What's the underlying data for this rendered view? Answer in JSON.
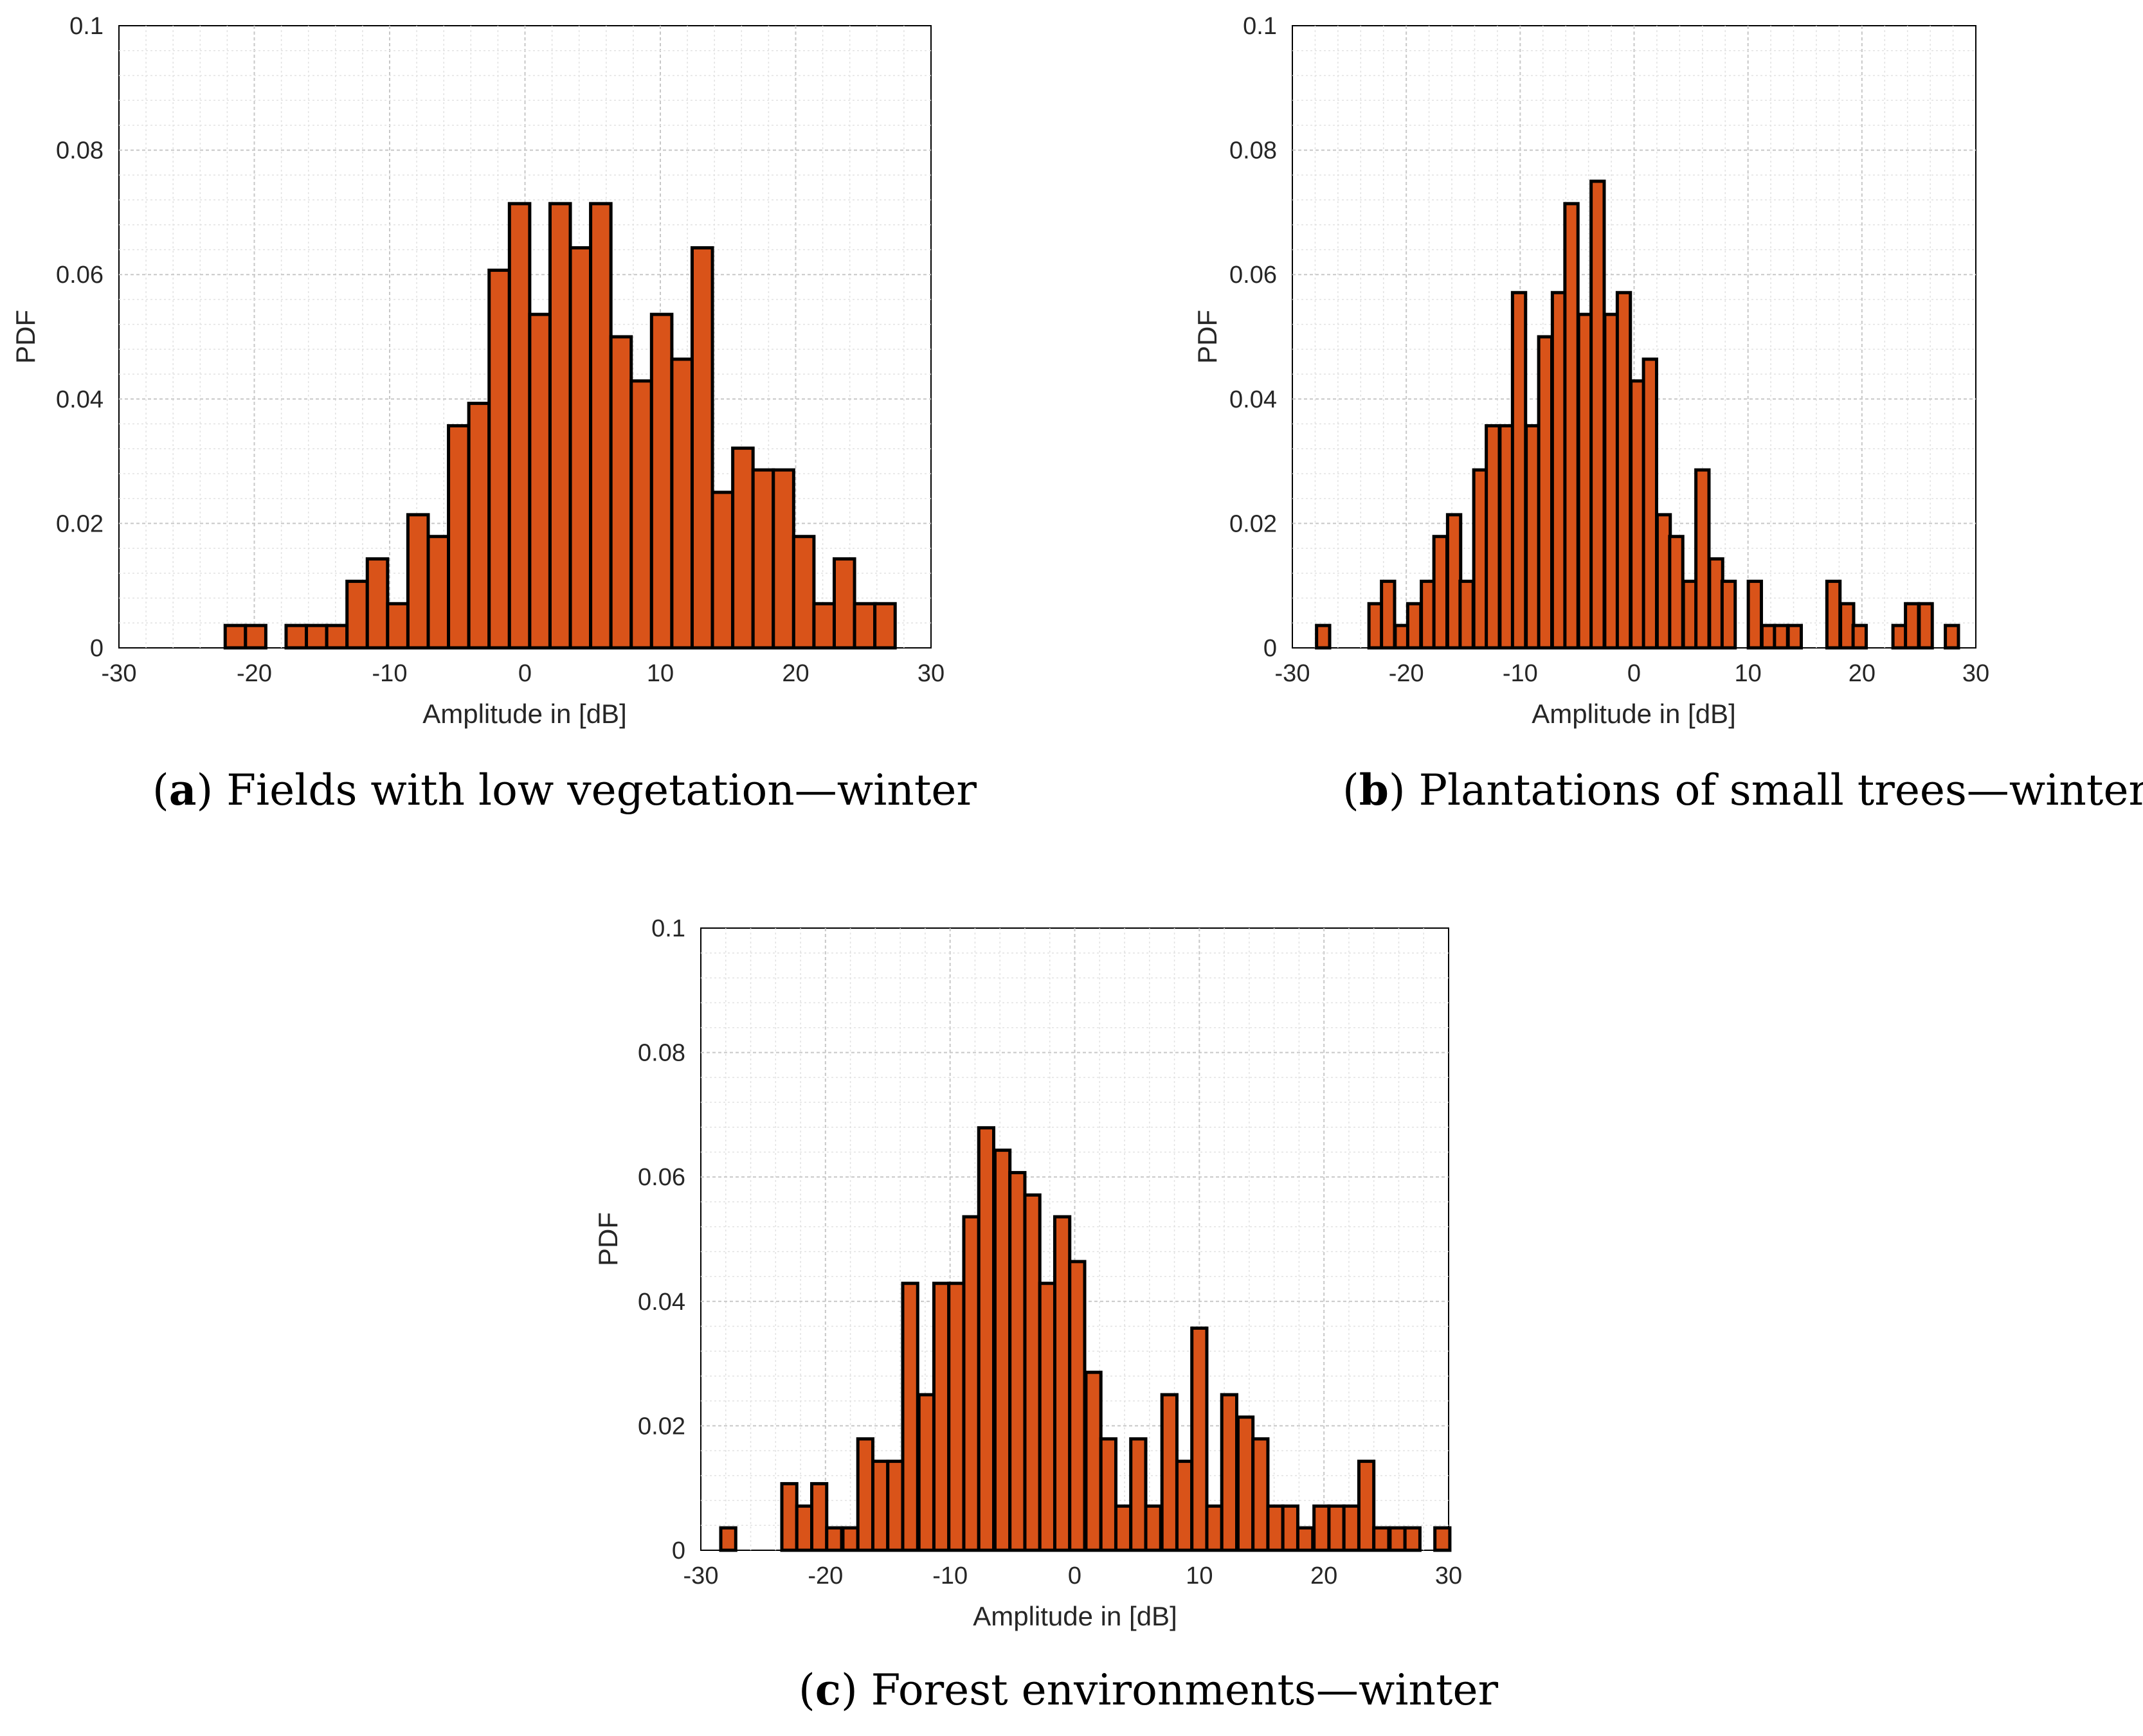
{
  "colors": {
    "bar": "#d95319",
    "edge": "#000000"
  },
  "chart_data": [
    {
      "type": "bar",
      "caption_letter": "a",
      "caption_text": "Fields with low vegetation—winter",
      "title": "",
      "xlabel": "Amplitude in [dB]",
      "ylabel": "PDF",
      "xlim": [
        -30,
        30
      ],
      "ylim": [
        0,
        0.1
      ],
      "xticks": [
        "-30",
        "-20",
        "-10",
        "0",
        "10",
        "20",
        "30"
      ],
      "yticks": [
        "0",
        "0.02",
        "0.04",
        "0.06",
        "0.08",
        "0.1"
      ],
      "grid": true,
      "bin_width": 1.5,
      "x": [
        -21.4,
        -19.9,
        -16.9,
        -15.4,
        -13.9,
        -12.4,
        -10.9,
        -9.4,
        -7.9,
        -6.4,
        -4.9,
        -3.4,
        -1.9,
        -0.4,
        1.1,
        2.6,
        4.1,
        5.6,
        7.1,
        8.6,
        10.1,
        11.6,
        13.1,
        14.6,
        16.1,
        17.6,
        19.1,
        20.6,
        22.1,
        23.6,
        25.1,
        26.6
      ],
      "values": [
        0.0036,
        0.0036,
        0.0036,
        0.0036,
        0.0036,
        0.0107,
        0.0143,
        0.0071,
        0.0214,
        0.0179,
        0.0357,
        0.0393,
        0.0607,
        0.0714,
        0.0536,
        0.0714,
        0.0643,
        0.0714,
        0.05,
        0.0429,
        0.0536,
        0.0464,
        0.0643,
        0.025,
        0.0321,
        0.0286,
        0.0286,
        0.0179,
        0.0071,
        0.0143,
        0.0071,
        0.0071
      ]
    },
    {
      "type": "bar",
      "caption_letter": "b",
      "caption_text": "Plantations of small trees—winter",
      "title": "",
      "xlabel": "Amplitude in [dB]",
      "ylabel": "PDF",
      "xlim": [
        -30,
        30
      ],
      "ylim": [
        0,
        0.1
      ],
      "xticks": [
        "-30",
        "-20",
        "-10",
        "0",
        "10",
        "20",
        "30"
      ],
      "yticks": [
        "0",
        "0.02",
        "0.04",
        "0.06",
        "0.08",
        "0.1"
      ],
      "grid": true,
      "bin_width": 1.15,
      "x": [
        -27.3,
        -22.7,
        -21.6,
        -20.4,
        -19.3,
        -18.1,
        -17.0,
        -15.8,
        -14.7,
        -13.5,
        -12.4,
        -11.2,
        -10.1,
        -8.9,
        -7.8,
        -6.6,
        -5.5,
        -4.3,
        -3.2,
        -2.0,
        -0.9,
        0.3,
        1.4,
        2.6,
        3.7,
        4.9,
        6.0,
        7.2,
        8.3,
        10.6,
        11.8,
        12.9,
        14.1,
        17.5,
        18.7,
        19.8,
        23.3,
        24.4,
        25.6,
        27.9
      ],
      "values": [
        0.0036,
        0.0071,
        0.0107,
        0.0036,
        0.0071,
        0.0107,
        0.0179,
        0.0214,
        0.0107,
        0.0286,
        0.0357,
        0.0357,
        0.0571,
        0.0357,
        0.05,
        0.0571,
        0.0714,
        0.0536,
        0.075,
        0.0536,
        0.0571,
        0.0429,
        0.0464,
        0.0214,
        0.0179,
        0.0107,
        0.0286,
        0.0143,
        0.0107,
        0.0107,
        0.0036,
        0.0036,
        0.0036,
        0.0107,
        0.0071,
        0.0036,
        0.0036,
        0.0071,
        0.0071,
        0.0036
      ]
    },
    {
      "type": "bar",
      "caption_letter": "c",
      "caption_text": "Forest environments—winter",
      "title": "",
      "xlabel": "Amplitude in [dB]",
      "ylabel": "PDF",
      "xlim": [
        -30,
        30
      ],
      "ylim": [
        0,
        0.1
      ],
      "xticks": [
        "-30",
        "-20",
        "-10",
        "0",
        "10",
        "20",
        "30"
      ],
      "yticks": [
        "0",
        "0.02",
        "0.04",
        "0.06",
        "0.08",
        "0.1"
      ],
      "grid": true,
      "bin_width": 1.2,
      "x": [
        -27.8,
        -22.9,
        -21.7,
        -20.5,
        -19.3,
        -18.0,
        -16.8,
        -15.6,
        -14.4,
        -13.2,
        -11.9,
        -10.7,
        -9.5,
        -8.3,
        -7.1,
        -5.8,
        -4.6,
        -3.4,
        -2.2,
        -1.0,
        0.2,
        1.5,
        2.7,
        3.9,
        5.1,
        6.3,
        7.6,
        8.8,
        10.0,
        11.2,
        12.4,
        13.7,
        14.9,
        16.1,
        17.3,
        18.5,
        19.8,
        21.0,
        22.2,
        23.4,
        24.6,
        25.9,
        27.1,
        29.5
      ],
      "values": [
        0.0036,
        0.0107,
        0.0071,
        0.0107,
        0.0036,
        0.0036,
        0.0179,
        0.0143,
        0.0143,
        0.0429,
        0.025,
        0.0429,
        0.0429,
        0.0536,
        0.0679,
        0.0643,
        0.0607,
        0.0571,
        0.0429,
        0.0536,
        0.0464,
        0.0286,
        0.0179,
        0.0071,
        0.0179,
        0.0071,
        0.025,
        0.0143,
        0.0357,
        0.0071,
        0.025,
        0.0214,
        0.0179,
        0.0071,
        0.0071,
        0.0036,
        0.0071,
        0.0071,
        0.0071,
        0.0143,
        0.0036,
        0.0036,
        0.0036,
        0.0036
      ]
    }
  ]
}
